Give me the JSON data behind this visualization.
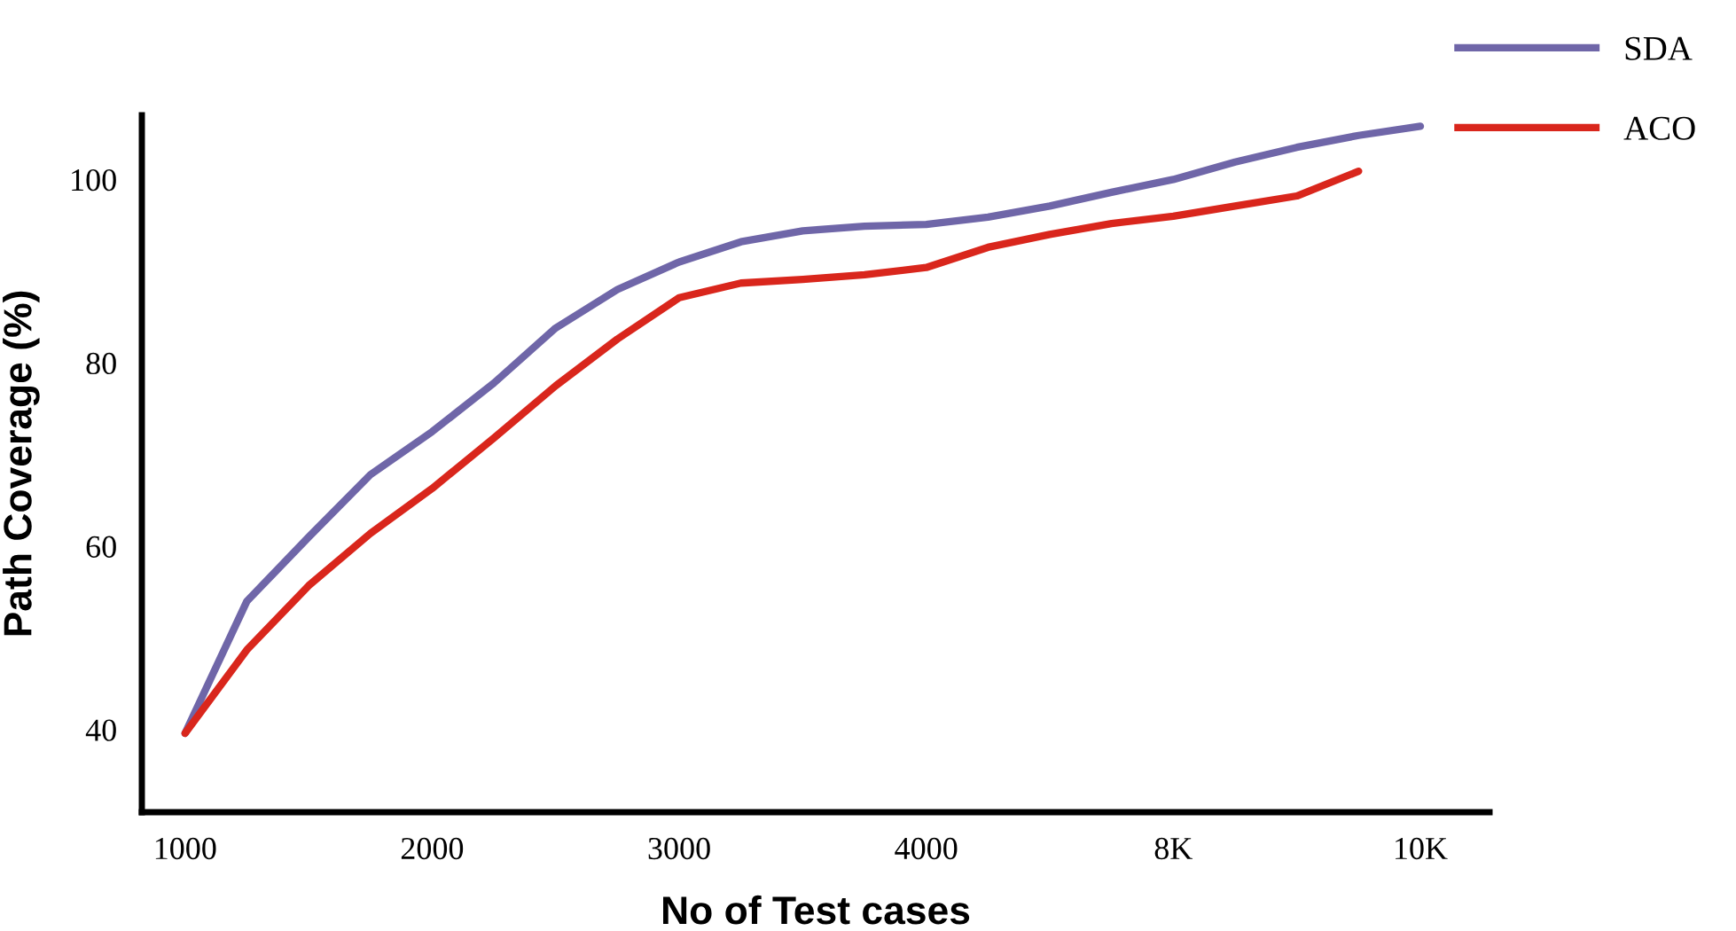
{
  "chart_data": {
    "type": "line",
    "xlabel": "No of Test cases",
    "ylabel": "Path Coverage (%)",
    "categories": [
      "1000",
      null,
      null,
      null,
      "2000",
      null,
      null,
      null,
      "3000",
      null,
      null,
      null,
      "4000",
      null,
      null,
      null,
      "8K",
      null,
      null,
      null,
      "10K"
    ],
    "ylim": [
      31,
      107
    ],
    "yticks": [
      40,
      60,
      80,
      100
    ],
    "grid": false,
    "legend": "top right",
    "marker": "none",
    "line_style": "solid",
    "series": [
      {
        "name": "SDA",
        "color": "#6f66a8",
        "values": [
          39.6,
          54.0,
          61.0,
          67.8,
          72.5,
          77.8,
          83.8,
          88.0,
          91.0,
          93.2,
          94.4,
          94.9,
          95.1,
          95.9,
          97.1,
          98.6,
          100.0,
          101.9,
          103.5,
          104.8,
          105.8
        ]
      },
      {
        "name": "ACO",
        "color": "#d9261c",
        "values": [
          39.6,
          48.7,
          55.7,
          61.4,
          66.3,
          71.8,
          77.5,
          82.6,
          87.1,
          88.7,
          89.1,
          89.6,
          90.4,
          92.6,
          94.0,
          95.2,
          96.0,
          97.1,
          98.2,
          100.9,
          null
        ]
      }
    ]
  }
}
